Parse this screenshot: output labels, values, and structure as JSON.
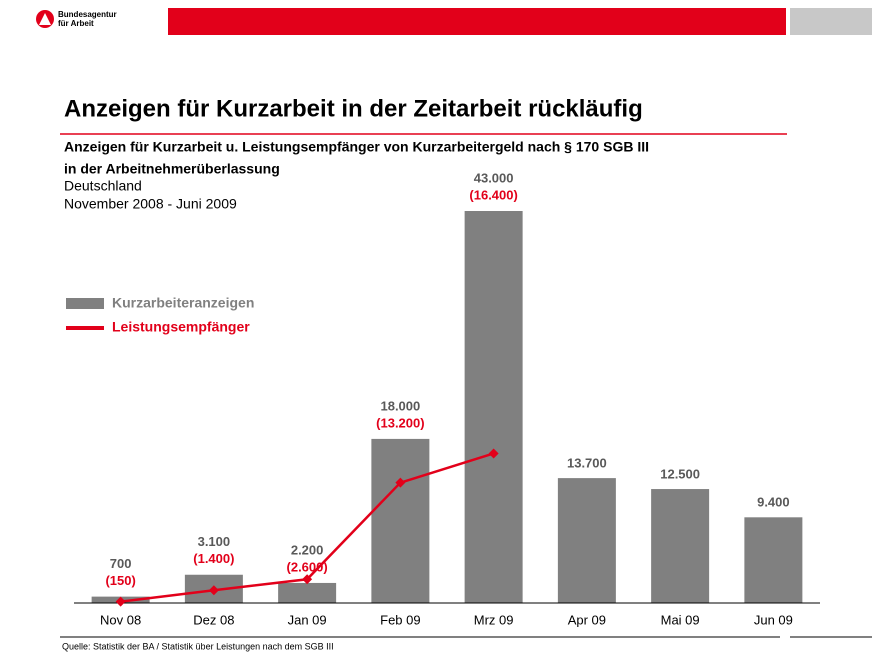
{
  "header": {
    "logo_line1": "Bundesagentur",
    "logo_line2": "für Arbeit"
  },
  "chart_data": {
    "type": "bar",
    "title": "Anzeigen für Kurzarbeit in der Zeitarbeit rückläufig",
    "subtitle": [
      "Anzeigen für Kurzarbeit u. Leistungsempfänger von Kurzarbeitergeld  nach § 170 SGB III",
      "in der Arbeitnehmerüberlassung"
    ],
    "region": "Deutschland",
    "period": "November 2008 - Juni 2009",
    "categories": [
      "Nov 08",
      "Dez 08",
      "Jan 09",
      "Feb 09",
      "Mrz 09",
      "Apr 09",
      "Mai 09",
      "Jun 09"
    ],
    "series": [
      {
        "name": "Kurzarbeiteranzeigen",
        "color": "#808080",
        "type": "bar",
        "values": [
          700,
          3100,
          2200,
          18000,
          43000,
          13700,
          12500,
          9400
        ],
        "value_labels": [
          "700",
          "3.100",
          "2.200",
          "18.000",
          "43.000",
          "13.700",
          "12.500",
          "9.400"
        ]
      },
      {
        "name": "Leistungsempfänger",
        "color": "#e2001a",
        "type": "line",
        "values": [
          150,
          1400,
          2600,
          13200,
          16400,
          null,
          null,
          null
        ],
        "value_labels": [
          "(150)",
          "(1.400)",
          "(2.600)",
          "(13.200)",
          "(16.400)",
          null,
          null,
          null
        ]
      }
    ],
    "legend": "left",
    "source": "Quelle: Statistik der BA / Statistik über Leistungen nach dem SGB III"
  }
}
